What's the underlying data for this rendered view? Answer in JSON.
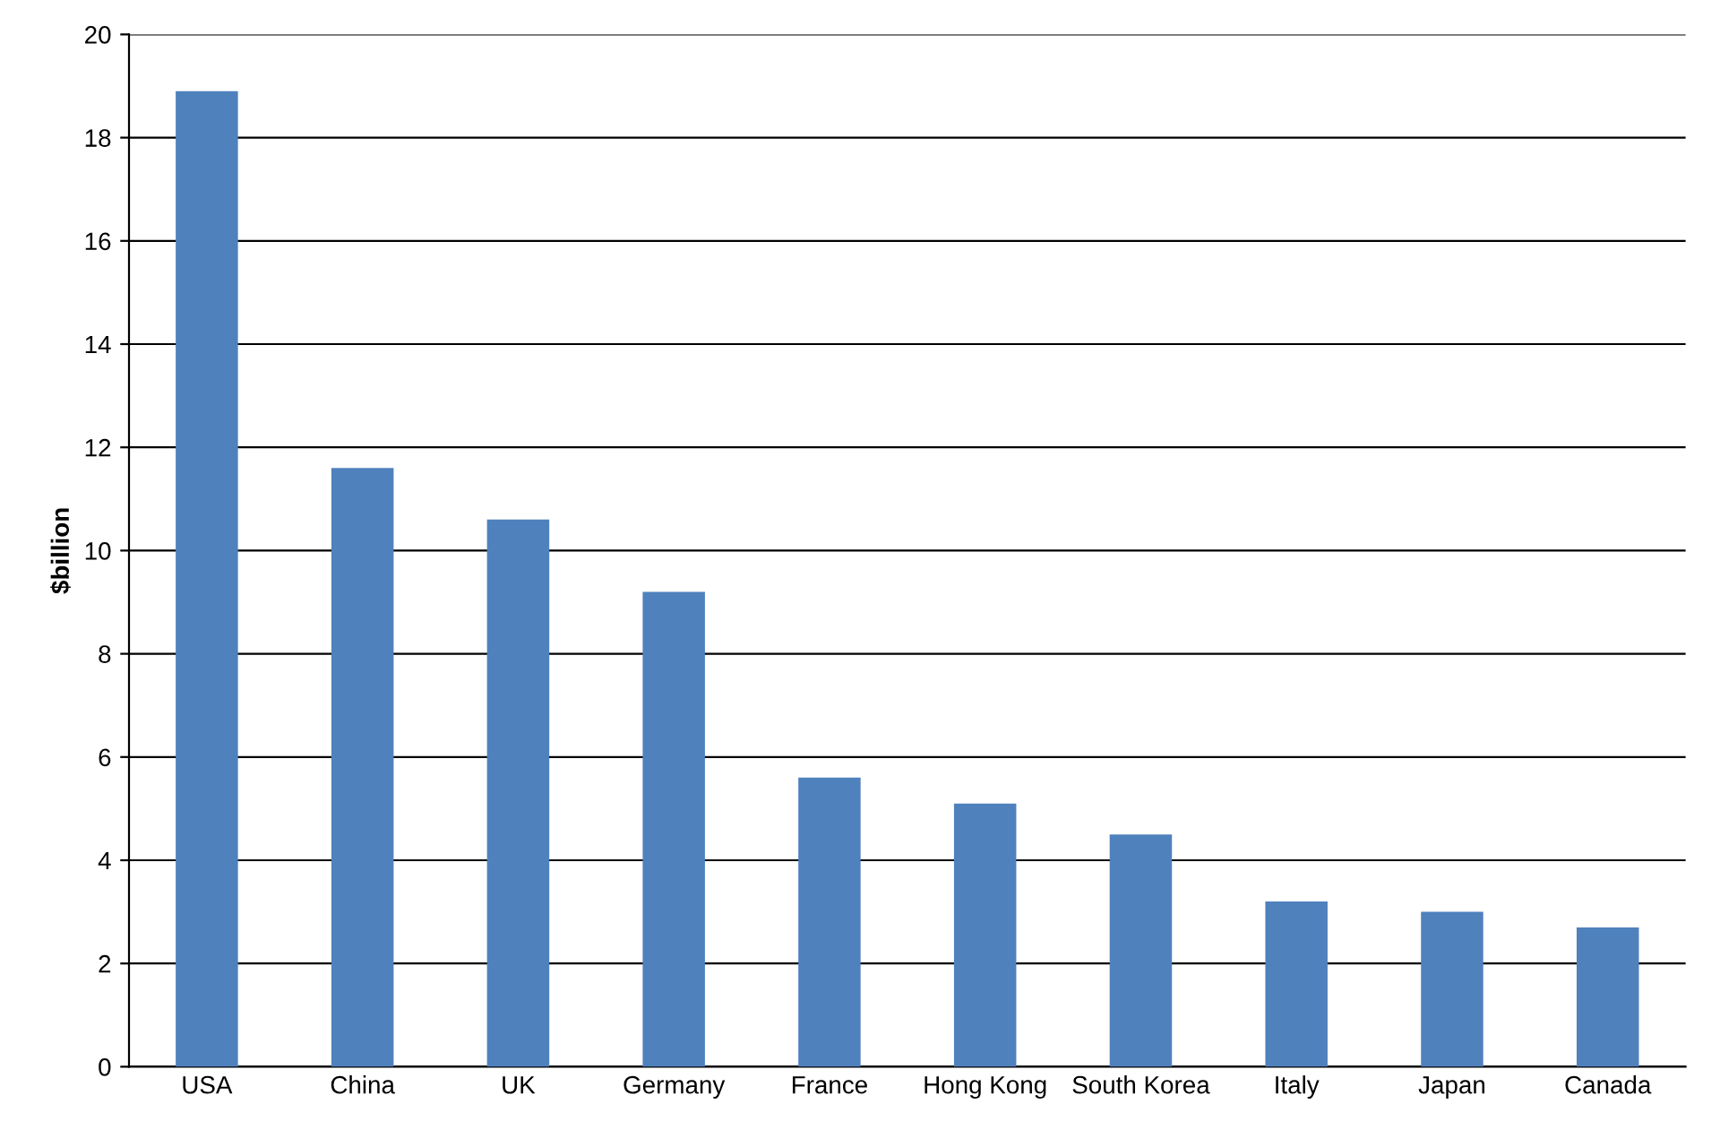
{
  "chart_data": {
    "type": "bar",
    "ylabel": "$billion",
    "categories": [
      "USA",
      "China",
      "UK",
      "Germany",
      "France",
      "Hong Kong",
      "South Korea",
      "Italy",
      "Japan",
      "Canada"
    ],
    "values": [
      18.9,
      11.6,
      10.6,
      9.2,
      5.6,
      5.1,
      4.5,
      3.2,
      3.0,
      2.7
    ],
    "color": "#4f81bd",
    "ylim": [
      0,
      20
    ],
    "yticks": [
      0,
      2,
      4,
      6,
      8,
      10,
      12,
      14,
      16,
      18,
      20
    ],
    "grid": "y",
    "legend": false
  }
}
